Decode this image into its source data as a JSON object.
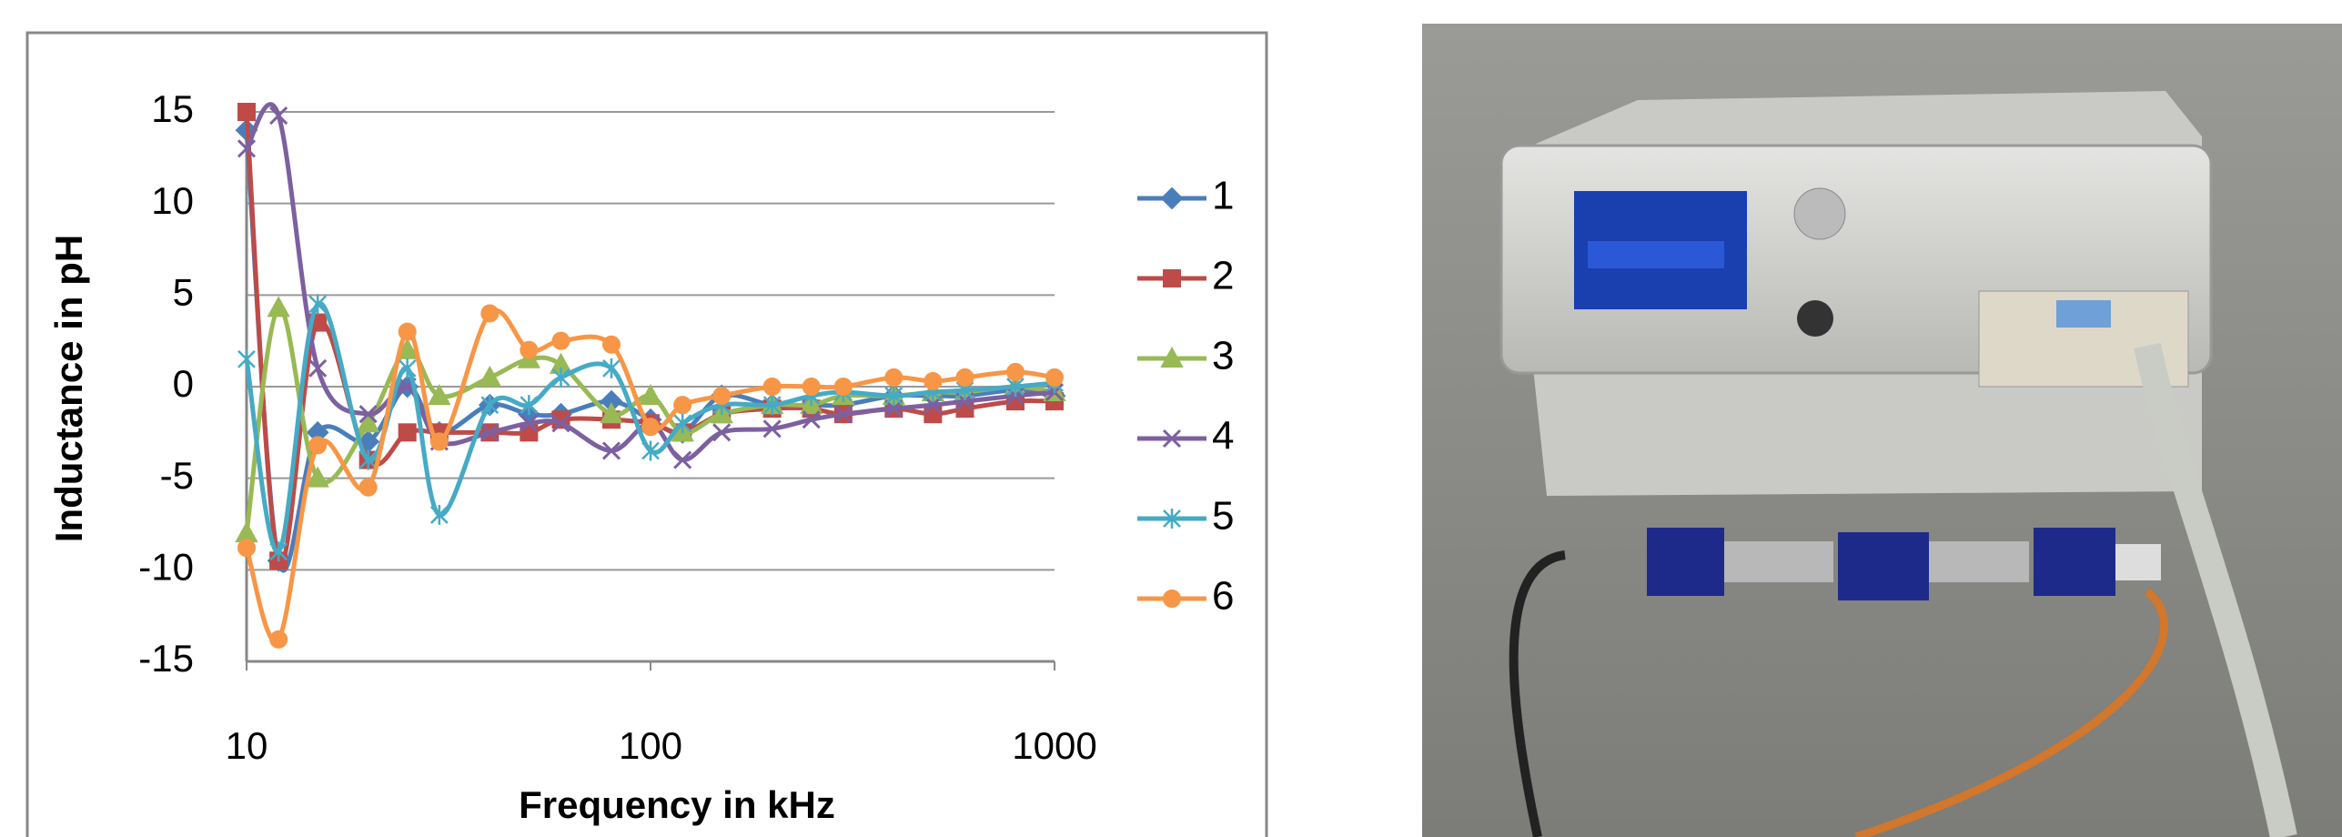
{
  "chart_data": {
    "type": "line",
    "xscale": "log",
    "smooth": true,
    "grid": true,
    "xlabel": "Frequency in kHz",
    "ylabel": "Inductance in pH",
    "x": [
      10,
      12,
      15,
      20,
      25,
      30,
      40,
      50,
      60,
      80,
      100,
      120,
      150,
      200,
      250,
      300,
      400,
      500,
      600,
      800,
      1000
    ],
    "xlim": [
      10,
      1000
    ],
    "xticks": [
      10,
      100,
      1000
    ],
    "ylim": [
      -15,
      15
    ],
    "yticks": [
      -15,
      -10,
      -5,
      0,
      5,
      10,
      15
    ],
    "legend": "right",
    "series": [
      {
        "name": "1",
        "color": "#4a7ebb",
        "marker": "diamond",
        "values": [
          14,
          -9.5,
          -2.5,
          -3,
          0,
          -2.5,
          -1,
          -1.5,
          -1.5,
          -0.8,
          -1.8,
          -2.5,
          -0.5,
          -1,
          -1,
          -1,
          -0.5,
          -0.5,
          -0.5,
          -0.2,
          -0.5
        ]
      },
      {
        "name": "2",
        "color": "#be4b48",
        "marker": "square",
        "values": [
          15,
          -9.5,
          3.5,
          -4,
          -2.5,
          -2.5,
          -2.5,
          -2.5,
          -1.8,
          -1.8,
          -2,
          -2.5,
          -1.5,
          -1.2,
          -1.2,
          -1.5,
          -1.2,
          -1.5,
          -1.2,
          -0.8,
          -0.8
        ]
      },
      {
        "name": "3",
        "color": "#98b954",
        "marker": "triangle",
        "values": [
          -8,
          4.3,
          -5,
          -2,
          2,
          -0.5,
          0.5,
          1.5,
          1.2,
          -1.5,
          -0.5,
          -2.5,
          -1.5,
          -1,
          -1,
          -0.5,
          -0.5,
          -0.3,
          -0.3,
          0,
          -0.3
        ]
      },
      {
        "name": "4",
        "color": "#7d60a0",
        "marker": "x",
        "values": [
          13,
          14.8,
          1,
          -1.5,
          0,
          -3,
          -2.5,
          -2,
          -2,
          -3.5,
          -2,
          -4,
          -2.5,
          -2.3,
          -1.8,
          -1.5,
          -1.2,
          -1,
          -0.8,
          -0.5,
          -0.3
        ]
      },
      {
        "name": "5",
        "color": "#46aac5",
        "marker": "star",
        "values": [
          1.5,
          -9,
          4.5,
          -4,
          1,
          -7,
          -1,
          -1,
          0.5,
          1,
          -3.5,
          -2,
          -1,
          -1,
          -0.5,
          -0.3,
          -0.5,
          -0.3,
          -0.2,
          0,
          0.2
        ]
      },
      {
        "name": "6",
        "color": "#f79646",
        "marker": "circle",
        "values": [
          -8.8,
          -13.8,
          -3.2,
          -5.5,
          3,
          -3,
          4,
          2,
          2.5,
          2.3,
          -2.2,
          -1,
          -0.5,
          0,
          0,
          0,
          0.5,
          0.3,
          0.5,
          0.8,
          0.5
        ]
      }
    ]
  }
}
